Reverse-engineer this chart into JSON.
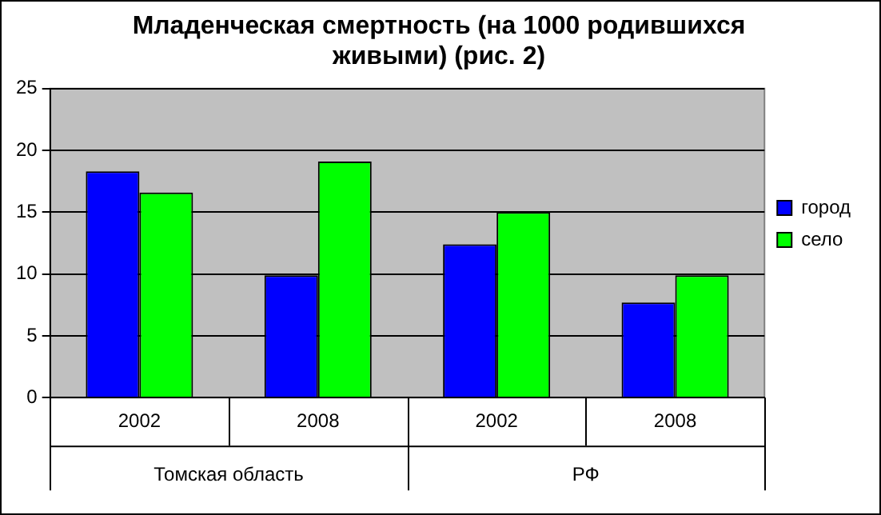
{
  "chart_data": {
    "type": "bar",
    "title": "Младенческая смертность (на 1000 родившихся живыми) (рис. 2)",
    "categories": [
      "2002",
      "2008",
      "2002",
      "2008"
    ],
    "series": [
      {
        "name": "город",
        "color": "#0000ff",
        "values": [
          18.3,
          9.9,
          12.4,
          7.7
        ]
      },
      {
        "name": "село",
        "color": "#00ff00",
        "values": [
          16.6,
          19.1,
          15.0,
          9.9
        ]
      }
    ],
    "annotations": [
      "Томская область",
      "РФ"
    ],
    "ylim": [
      0,
      25
    ],
    "yticks": [
      0,
      5,
      10,
      15,
      20,
      25
    ],
    "grid": "y",
    "legend": "right"
  }
}
